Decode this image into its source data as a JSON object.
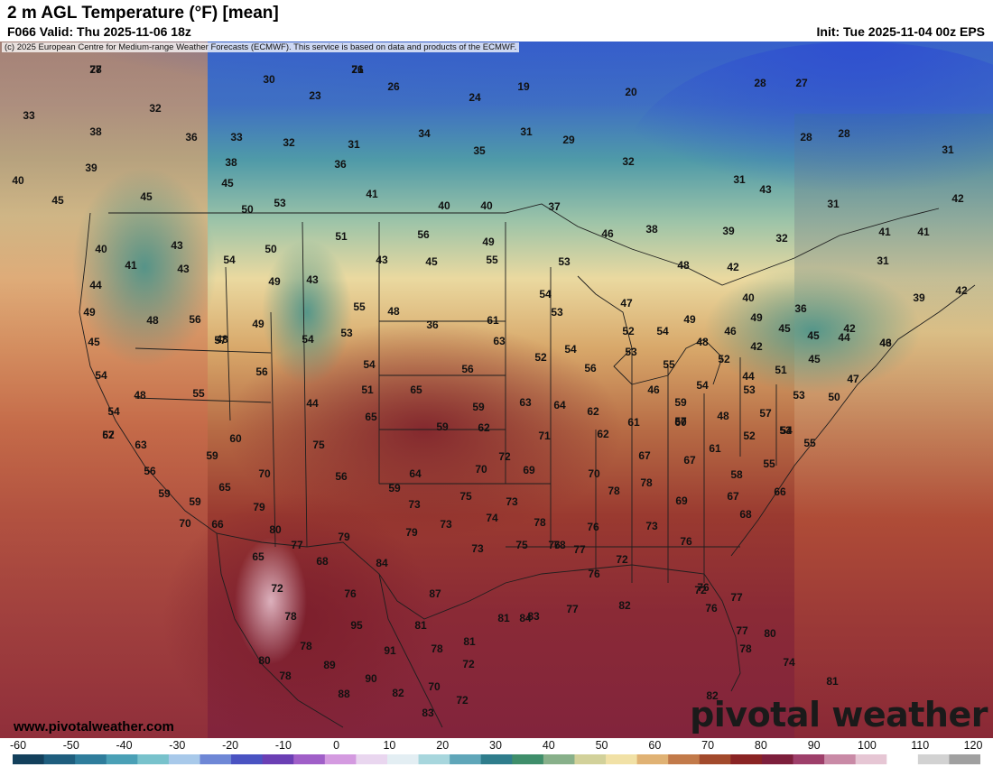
{
  "header": {
    "title": "2 m AGL Temperature (°F) [mean]",
    "valid": "F066 Valid: Thu 2025-11-06 18z",
    "init": "Init: Tue 2025-11-04 00z EPS"
  },
  "map": {
    "credit": "(c) 2025 European Centre for Medium-range Weather Forecasts (ECMWF). This service is based on data and products of the ECMWF.",
    "website": "www.pivotalweather.com",
    "brand": "pivotal weather",
    "temperature_labels": [
      "27",
      "21",
      "30",
      "26",
      "24",
      "19",
      "20",
      "28",
      "27",
      "33",
      "32",
      "23",
      "31",
      "29",
      "28",
      "28",
      "31",
      "38",
      "36",
      "33",
      "32",
      "31",
      "34",
      "35",
      "32",
      "39",
      "38",
      "36",
      "41",
      "40",
      "40",
      "37",
      "31",
      "42",
      "40",
      "45",
      "45",
      "50",
      "53",
      "43",
      "31",
      "41",
      "41",
      "45",
      "40",
      "43",
      "50",
      "51",
      "56",
      "49",
      "46",
      "38",
      "39",
      "32",
      "31",
      "41",
      "43",
      "54",
      "49",
      "43",
      "45",
      "55",
      "53",
      "48",
      "42",
      "40",
      "36",
      "39",
      "42",
      "44",
      "43",
      "55",
      "57",
      "54",
      "53",
      "47",
      "49",
      "45",
      "42",
      "44",
      "42",
      "45",
      "46",
      "49",
      "48",
      "56",
      "49",
      "54",
      "48",
      "36",
      "61",
      "63",
      "52",
      "54",
      "49",
      "48",
      "46",
      "47",
      "43",
      "45",
      "48",
      "52",
      "53",
      "56",
      "54",
      "56",
      "54",
      "56",
      "53",
      "55",
      "52",
      "51",
      "45",
      "46",
      "44",
      "54",
      "48",
      "55",
      "51",
      "44",
      "65",
      "59",
      "62",
      "63",
      "64",
      "62",
      "59",
      "57",
      "54",
      "53",
      "50",
      "48",
      "53",
      "54",
      "63",
      "60",
      "62",
      "65",
      "59",
      "71",
      "62",
      "61",
      "60",
      "57",
      "53",
      "52",
      "54",
      "55",
      "57",
      "56",
      "59",
      "65",
      "70",
      "75",
      "56",
      "59",
      "64",
      "70",
      "72",
      "69",
      "70",
      "67",
      "67",
      "61",
      "58",
      "55",
      "59",
      "59",
      "66",
      "79",
      "80",
      "77",
      "79",
      "73",
      "75",
      "73",
      "73",
      "74",
      "78",
      "78",
      "69",
      "67",
      "68",
      "66",
      "70",
      "65",
      "68",
      "84",
      "73",
      "79",
      "78",
      "76",
      "75",
      "78",
      "77",
      "76",
      "72",
      "73",
      "76",
      "72",
      "76",
      "87",
      "81",
      "82",
      "84",
      "76",
      "77",
      "72",
      "76",
      "77",
      "78",
      "78",
      "89",
      "95",
      "91",
      "78",
      "81",
      "81",
      "83",
      "76",
      "77",
      "80",
      "80",
      "78",
      "88",
      "90",
      "82",
      "70",
      "72",
      "72",
      "83",
      "82",
      "74",
      "81",
      "78",
      "78",
      "76"
    ]
  },
  "colorbar": {
    "unit": "°F",
    "ticks": [
      "-60",
      "-50",
      "-40",
      "-30",
      "-20",
      "-10",
      "0",
      "10",
      "20",
      "30",
      "40",
      "50",
      "60",
      "70",
      "80",
      "90",
      "100",
      "110",
      "120"
    ],
    "colors": [
      "#13405c",
      "#1f5e7e",
      "#2f7d9c",
      "#4aa0b6",
      "#78c2cc",
      "#a8c9ea",
      "#6e87d6",
      "#4a53c2",
      "#6b3fb4",
      "#a05fc8",
      "#d49ae0",
      "#e9d6ef",
      "#e3eef3",
      "#a7d6dd",
      "#5fa6b9",
      "#2f7d8c",
      "#3f8e6b",
      "#88b08a",
      "#d2d19a",
      "#f1e1a6",
      "#e0b274",
      "#c27a4a",
      "#a24a2c",
      "#8a2424",
      "#7d1f3c",
      "#9e3f6a",
      "#c98aa6",
      "#e6c6d4",
      "#ffffff",
      "#d2d2d2",
      "#a0a0a0"
    ]
  }
}
